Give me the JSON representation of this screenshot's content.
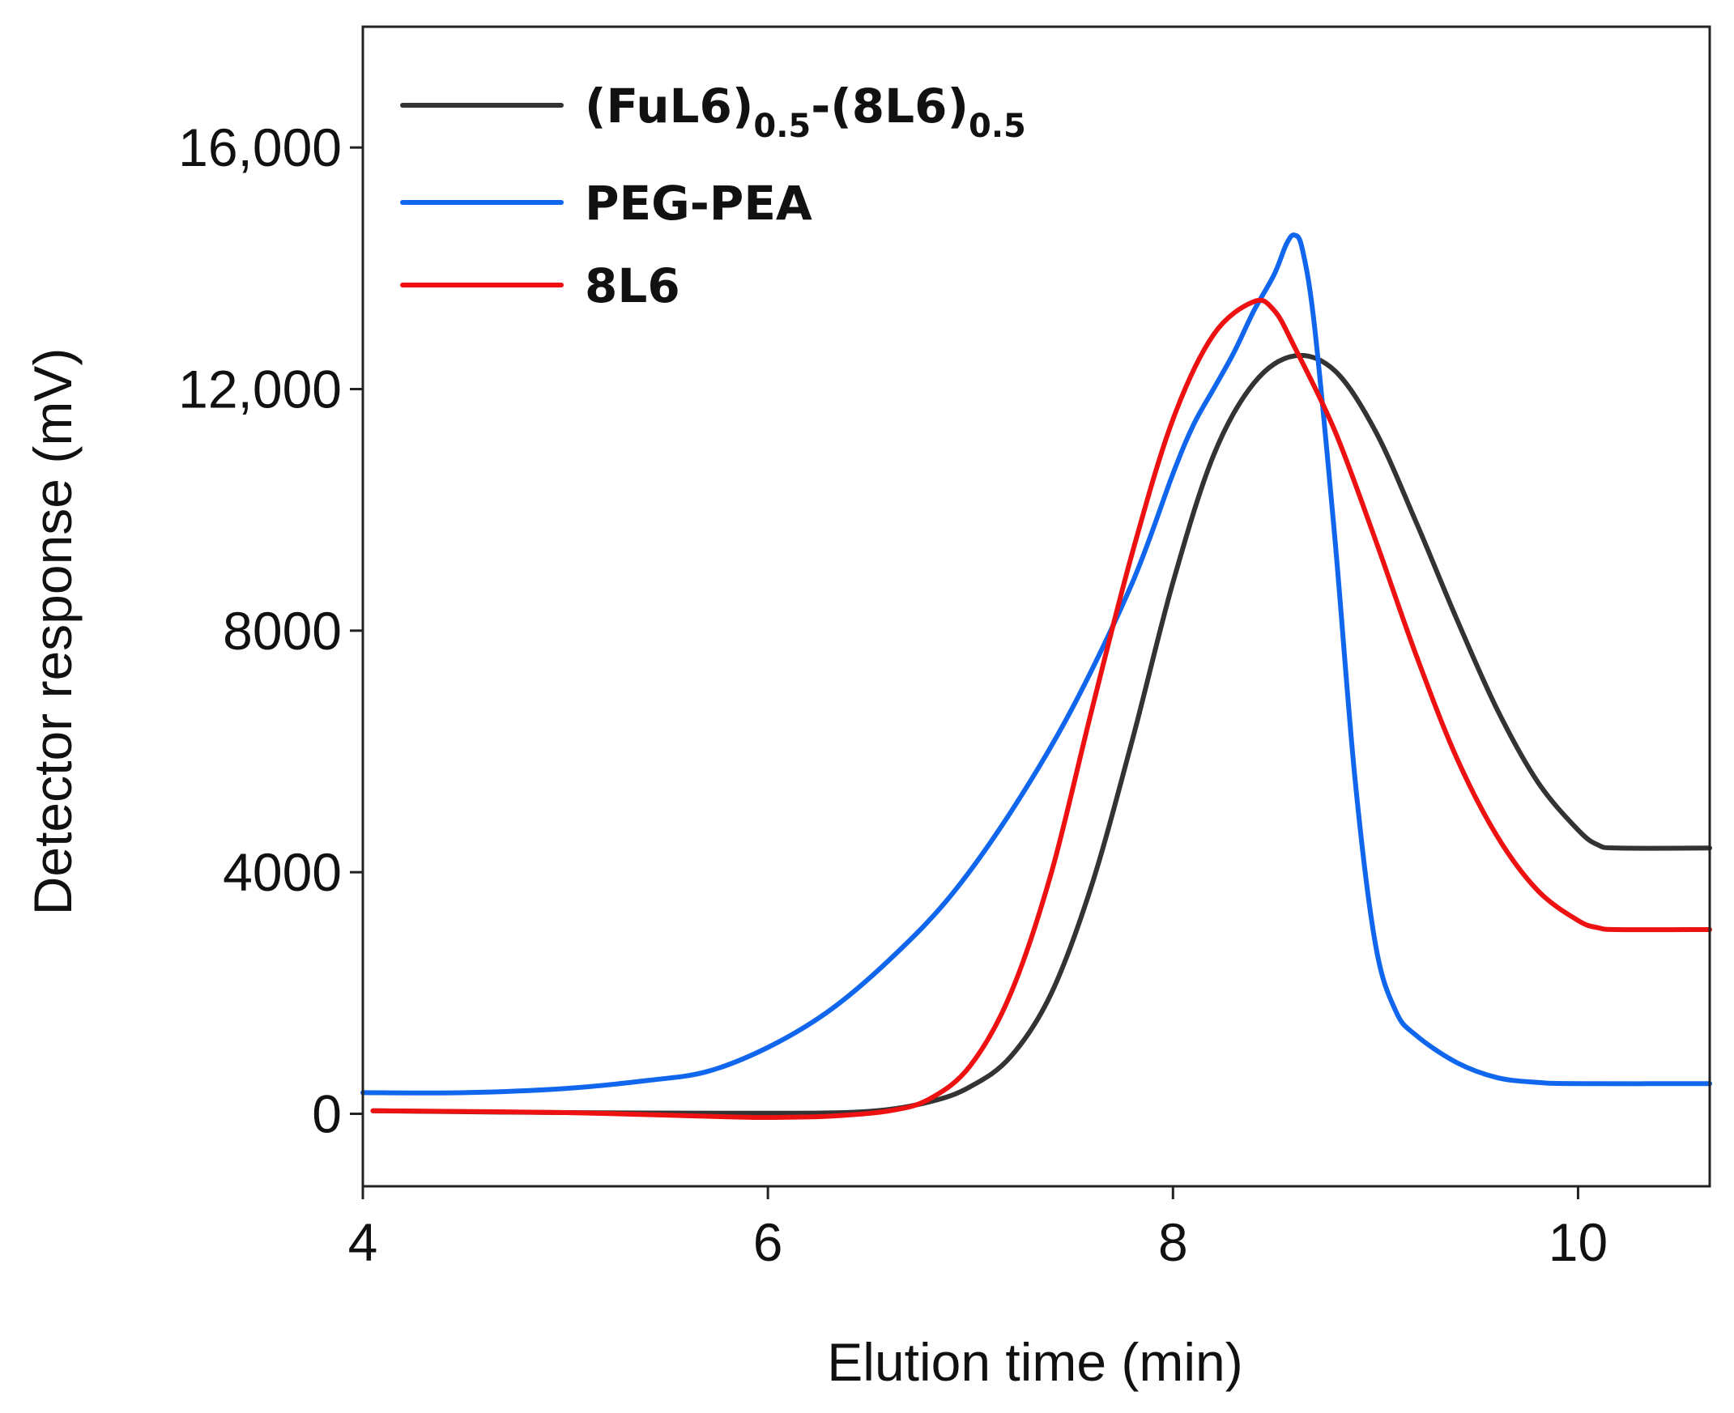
{
  "chart_data": {
    "type": "line",
    "title": "",
    "xlabel": "Elution time (min)",
    "ylabel": "Detector response (mV)",
    "xlim": [
      4,
      10.65
    ],
    "ylim": [
      -1200,
      18000
    ],
    "x_ticks": [
      4,
      6,
      8,
      10
    ],
    "x_tick_labels": [
      "4",
      "6",
      "8",
      "10"
    ],
    "y_ticks": [
      0,
      4000,
      8000,
      12000,
      16000
    ],
    "y_tick_labels": [
      "0",
      "4000",
      "8000",
      "12,000",
      "16,000"
    ],
    "grid": false,
    "legend_position": "top-left",
    "series": [
      {
        "name": "(FuL6)0.5-(8L6)0.5",
        "legend_parts": [
          "(FuL6)",
          "0.5",
          "-(8L6)",
          "0.5"
        ],
        "color": "#333333",
        "points": [
          [
            4.05,
            50
          ],
          [
            5.0,
            20
          ],
          [
            6.0,
            10
          ],
          [
            6.5,
            40
          ],
          [
            6.8,
            200
          ],
          [
            7.0,
            450
          ],
          [
            7.2,
            950
          ],
          [
            7.4,
            2000
          ],
          [
            7.6,
            3800
          ],
          [
            7.8,
            6200
          ],
          [
            8.0,
            8800
          ],
          [
            8.2,
            10900
          ],
          [
            8.4,
            12100
          ],
          [
            8.6,
            12550
          ],
          [
            8.8,
            12300
          ],
          [
            9.0,
            11300
          ],
          [
            9.2,
            9800
          ],
          [
            9.4,
            8200
          ],
          [
            9.6,
            6700
          ],
          [
            9.8,
            5500
          ],
          [
            10.0,
            4700
          ],
          [
            10.1,
            4450
          ],
          [
            10.2,
            4400
          ],
          [
            10.65,
            4400
          ]
        ]
      },
      {
        "name": "PEG-PEA",
        "legend_parts": [
          "PEG-PEA"
        ],
        "color": "#1166ee",
        "points": [
          [
            4.0,
            350
          ],
          [
            4.5,
            350
          ],
          [
            5.0,
            420
          ],
          [
            5.4,
            550
          ],
          [
            5.7,
            700
          ],
          [
            6.0,
            1100
          ],
          [
            6.3,
            1700
          ],
          [
            6.6,
            2550
          ],
          [
            6.9,
            3600
          ],
          [
            7.2,
            5000
          ],
          [
            7.5,
            6700
          ],
          [
            7.8,
            8800
          ],
          [
            8.0,
            10600
          ],
          [
            8.1,
            11400
          ],
          [
            8.2,
            12000
          ],
          [
            8.3,
            12600
          ],
          [
            8.4,
            13300
          ],
          [
            8.5,
            13900
          ],
          [
            8.56,
            14400
          ],
          [
            8.6,
            14550
          ],
          [
            8.64,
            14300
          ],
          [
            8.7,
            13000
          ],
          [
            8.8,
            9500
          ],
          [
            8.9,
            5500
          ],
          [
            9.0,
            2800
          ],
          [
            9.1,
            1700
          ],
          [
            9.2,
            1300
          ],
          [
            9.4,
            850
          ],
          [
            9.6,
            600
          ],
          [
            9.8,
            520
          ],
          [
            10.0,
            500
          ],
          [
            10.65,
            500
          ]
        ]
      },
      {
        "name": "8L6",
        "legend_parts": [
          "8L6"
        ],
        "color": "#ee1111",
        "points": [
          [
            4.05,
            50
          ],
          [
            5.0,
            20
          ],
          [
            5.8,
            -50
          ],
          [
            6.0,
            -60
          ],
          [
            6.3,
            -40
          ],
          [
            6.6,
            50
          ],
          [
            6.8,
            250
          ],
          [
            7.0,
            800
          ],
          [
            7.2,
            2000
          ],
          [
            7.4,
            4000
          ],
          [
            7.6,
            6700
          ],
          [
            7.8,
            9300
          ],
          [
            8.0,
            11500
          ],
          [
            8.2,
            12900
          ],
          [
            8.4,
            13450
          ],
          [
            8.5,
            13300
          ],
          [
            8.6,
            12700
          ],
          [
            8.8,
            11300
          ],
          [
            9.0,
            9500
          ],
          [
            9.2,
            7600
          ],
          [
            9.4,
            5900
          ],
          [
            9.6,
            4600
          ],
          [
            9.8,
            3700
          ],
          [
            10.0,
            3200
          ],
          [
            10.1,
            3080
          ],
          [
            10.2,
            3050
          ],
          [
            10.65,
            3050
          ]
        ]
      }
    ]
  }
}
